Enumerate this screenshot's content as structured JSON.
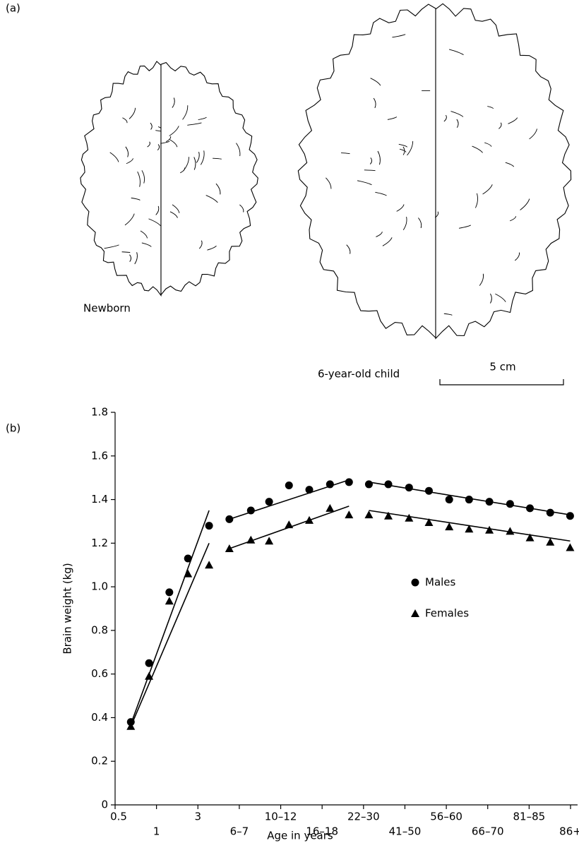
{
  "panel_a": {
    "label": "(a)",
    "newborn_label": "Newborn",
    "child_label": "6-year-old child",
    "scale_label": "5 cm"
  },
  "chart_data": {
    "type": "scatter",
    "panel_label": "(b)",
    "x_label": "Age in years",
    "y_label": "Brain weight (kg)",
    "xlim": [
      0,
      11
    ],
    "ylim": [
      0,
      1.8
    ],
    "xticks": [
      {
        "value": 0,
        "label": "0.5"
      },
      {
        "value": 1,
        "label": "1"
      },
      {
        "value": 2,
        "label": "3"
      },
      {
        "value": 3,
        "label": "6–7"
      },
      {
        "value": 4,
        "label": "10–12"
      },
      {
        "value": 5,
        "label": "16–18"
      },
      {
        "value": 6,
        "label": "22–30"
      },
      {
        "value": 7,
        "label": "41–50"
      },
      {
        "value": 8,
        "label": "56–60"
      },
      {
        "value": 9,
        "label": "66–70"
      },
      {
        "value": 10,
        "label": "81–85"
      },
      {
        "value": 11,
        "label": "86+"
      }
    ],
    "yticks": [
      0,
      0.2,
      0.4,
      0.6,
      0.8,
      {
        "value": 1,
        "label": "1.0"
      },
      1.2,
      1.4,
      1.6,
      1.8
    ],
    "x": [
      0.38,
      0.82,
      1.31,
      1.76,
      2.27,
      2.76,
      3.28,
      3.72,
      4.2,
      4.69,
      5.19,
      5.65,
      6.13,
      6.6,
      7.1,
      7.58,
      8.07,
      8.55,
      9.04,
      9.54,
      10.02,
      10.51,
      10.99
    ],
    "legend": "center-right",
    "series": [
      {
        "name": "Males",
        "marker": "circle",
        "color": "#000000",
        "values": [
          0.38,
          0.65,
          0.975,
          1.13,
          1.28,
          1.31,
          1.35,
          1.39,
          1.465,
          1.445,
          1.47,
          1.48,
          1.47,
          1.47,
          1.455,
          1.44,
          1.4,
          1.4,
          1.39,
          1.38,
          1.36,
          1.34,
          1.325
        ],
        "fit_segments": [
          {
            "x": [
              0.38,
              2.27
            ],
            "y": [
              0.37,
              1.35
            ]
          },
          {
            "x": [
              2.76,
              5.65
            ],
            "y": [
              1.31,
              1.49
            ]
          },
          {
            "x": [
              6.13,
              10.99
            ],
            "y": [
              1.48,
              1.33
            ]
          }
        ]
      },
      {
        "name": "Females",
        "marker": "triangle",
        "color": "#000000",
        "values": [
          0.36,
          0.59,
          0.935,
          1.06,
          1.1,
          1.175,
          1.215,
          1.21,
          1.285,
          1.305,
          1.36,
          1.33,
          1.33,
          1.325,
          1.315,
          1.295,
          1.275,
          1.265,
          1.26,
          1.255,
          1.225,
          1.205,
          1.18
        ],
        "fit_segments": [
          {
            "x": [
              0.38,
              2.27
            ],
            "y": [
              0.36,
              1.2
            ]
          },
          {
            "x": [
              2.76,
              5.65
            ],
            "y": [
              1.175,
              1.37
            ]
          },
          {
            "x": [
              6.13,
              10.99
            ],
            "y": [
              1.35,
              1.21
            ]
          }
        ]
      }
    ]
  }
}
